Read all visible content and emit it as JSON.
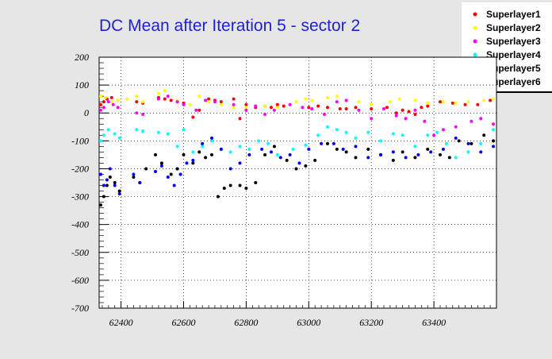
{
  "chart_data": {
    "type": "scatter",
    "title": "DC Mean after Iteration 5 - sector 2",
    "xlabel": "",
    "ylabel": "",
    "xlim": [
      62330,
      63600
    ],
    "ylim": [
      -700,
      200
    ],
    "x_ticks": [
      62400,
      62600,
      62800,
      63000,
      63200,
      63400
    ],
    "y_ticks": [
      -700,
      -600,
      -500,
      -400,
      -300,
      -200,
      -100,
      0,
      100,
      200
    ],
    "grid": true,
    "legend_position": "top-right",
    "series": [
      {
        "name": "Superlayer1",
        "color": "#ff0000",
        "x": [
          62335,
          62345,
          62355,
          62370,
          62390,
          62450,
          62470,
          62520,
          62540,
          62560,
          62580,
          62600,
          62630,
          62650,
          62680,
          62700,
          62720,
          62760,
          62780,
          62800,
          62830,
          62860,
          62880,
          62900,
          62920,
          63000,
          63030,
          63060,
          63100,
          63120,
          63150,
          63200,
          63250,
          63280,
          63300,
          63320,
          63340,
          63360,
          63380,
          63420,
          63460,
          63500,
          63540,
          63580
        ],
        "y": [
          30,
          40,
          50,
          55,
          45,
          40,
          35,
          55,
          50,
          45,
          40,
          35,
          -15,
          10,
          50,
          45,
          40,
          50,
          -20,
          30,
          20,
          25,
          20,
          30,
          25,
          20,
          25,
          20,
          15,
          15,
          20,
          15,
          20,
          0,
          10,
          5,
          -5,
          20,
          25,
          40,
          35,
          30,
          30,
          45
        ]
      },
      {
        "name": "Superlayer2",
        "color": "#ffff00",
        "x": [
          62335,
          62350,
          62370,
          62390,
          62420,
          62450,
          62470,
          62520,
          62540,
          62580,
          62620,
          62650,
          62680,
          62720,
          62760,
          62800,
          62860,
          62900,
          62960,
          62990,
          63010,
          63060,
          63090,
          63120,
          63160,
          63200,
          63260,
          63290,
          63340,
          63380,
          63430,
          63470,
          63510,
          63560,
          63590
        ],
        "y": [
          60,
          55,
          40,
          45,
          50,
          60,
          40,
          70,
          80,
          45,
          30,
          60,
          40,
          30,
          20,
          20,
          25,
          20,
          40,
          50,
          45,
          55,
          60,
          45,
          40,
          30,
          40,
          50,
          45,
          35,
          40,
          35,
          40,
          45,
          50
        ]
      },
      {
        "name": "Superlayer3",
        "color": "#ff00ff",
        "x": [
          62335,
          62345,
          62360,
          62375,
          62390,
          62450,
          62470,
          62520,
          62550,
          62580,
          62600,
          62640,
          62670,
          62700,
          62760,
          62800,
          62830,
          62860,
          62890,
          62940,
          62980,
          63010,
          63050,
          63090,
          63120,
          63160,
          63200,
          63240,
          63280,
          63310,
          63340,
          63370,
          63400,
          63430,
          63470,
          63520,
          63550,
          63590
        ],
        "y": [
          10,
          20,
          40,
          30,
          20,
          0,
          -5,
          50,
          60,
          40,
          30,
          10,
          45,
          40,
          30,
          10,
          25,
          -5,
          10,
          30,
          20,
          15,
          -5,
          40,
          45,
          10,
          -20,
          15,
          -10,
          -20,
          10,
          -30,
          -80,
          -60,
          -50,
          -30,
          -20,
          -40
        ]
      },
      {
        "name": "Superlayer4",
        "color": "#00ffff",
        "x": [
          62335,
          62345,
          62360,
          62380,
          62395,
          62450,
          62470,
          62520,
          62550,
          62580,
          62600,
          62630,
          62660,
          62690,
          62720,
          62750,
          62780,
          62810,
          62840,
          62870,
          62900,
          62950,
          62990,
          63030,
          63060,
          63090,
          63120,
          63150,
          63190,
          63230,
          63270,
          63300,
          63340,
          63380,
          63410,
          63440,
          63470,
          63510,
          63550,
          63590
        ],
        "y": [
          -100,
          -80,
          -60,
          -75,
          -90,
          -60,
          -65,
          -70,
          -75,
          -120,
          -60,
          -140,
          -120,
          -100,
          -130,
          -140,
          -120,
          -130,
          -100,
          -110,
          -150,
          -130,
          -115,
          -80,
          -50,
          -60,
          -70,
          -90,
          -70,
          -100,
          -75,
          -80,
          -120,
          -80,
          -70,
          -110,
          -160,
          -140,
          -110,
          -60
        ]
      },
      {
        "name": "Superlayer5",
        "color": "#000000",
        "x": [
          62335,
          62345,
          62355,
          62365,
          62380,
          62395,
          62440,
          62460,
          62480,
          62510,
          62530,
          62560,
          62580,
          62600,
          62630,
          62650,
          62670,
          62690,
          62710,
          62730,
          62750,
          62780,
          62800,
          62830,
          62860,
          62890,
          62930,
          62960,
          62990,
          63020,
          63060,
          63090,
          63120,
          63150,
          63190,
          63230,
          63270,
          63300,
          63340,
          63380,
          63420,
          63450,
          63480,
          63520,
          63560,
          63590
        ],
        "y": [
          -330,
          -300,
          -260,
          -230,
          -250,
          -280,
          -230,
          -250,
          -200,
          -150,
          -180,
          -220,
          -200,
          -150,
          -180,
          -140,
          -160,
          -150,
          -300,
          -270,
          -260,
          -260,
          -270,
          -250,
          -150,
          -120,
          -170,
          -200,
          -190,
          -170,
          -110,
          -130,
          -140,
          -160,
          -130,
          -150,
          -170,
          -140,
          -160,
          -130,
          -150,
          -160,
          -100,
          -110,
          -80,
          -100
        ]
      },
      {
        "name": "Superlayer6",
        "color": "#0000ff",
        "x": [
          62335,
          62345,
          62355,
          62365,
          62380,
          62395,
          62440,
          62460,
          62510,
          62530,
          62550,
          62570,
          62590,
          62610,
          62630,
          62660,
          62690,
          62720,
          62750,
          62780,
          62810,
          62850,
          62880,
          62910,
          62940,
          62970,
          63000,
          63040,
          63080,
          63110,
          63150,
          63190,
          63230,
          63270,
          63310,
          63350,
          63390,
          63430,
          63470,
          63510,
          63550,
          63590
        ],
        "y": [
          -220,
          -260,
          -240,
          -200,
          -260,
          -290,
          -220,
          -250,
          -210,
          -190,
          -230,
          -260,
          -220,
          -180,
          -170,
          -110,
          -90,
          -130,
          -200,
          -180,
          -150,
          -130,
          -140,
          -160,
          -150,
          -180,
          -130,
          -110,
          -110,
          -130,
          -120,
          -160,
          -150,
          -140,
          -160,
          -150,
          -140,
          -130,
          -90,
          -110,
          -140,
          -120
        ]
      }
    ]
  }
}
